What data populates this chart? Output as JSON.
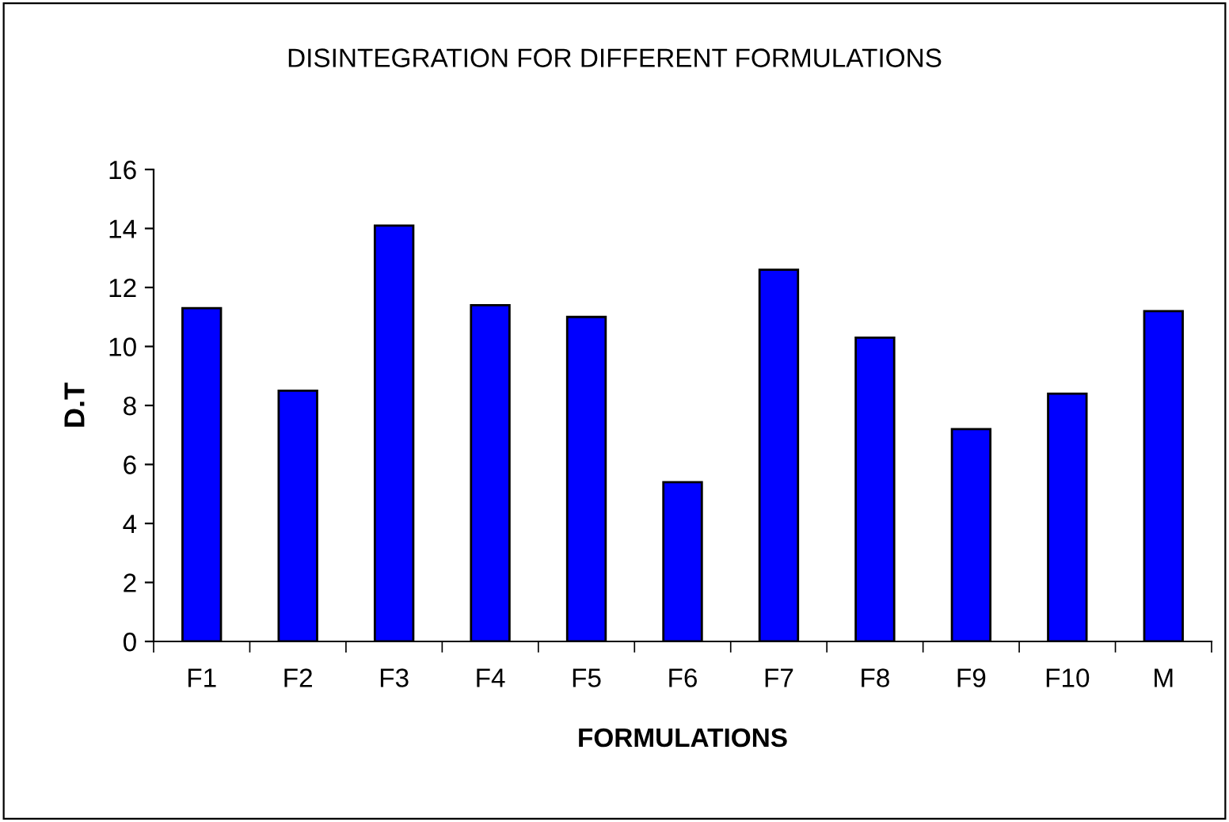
{
  "chart_data": {
    "type": "bar",
    "title": "DISINTEGRATION FOR DIFFERENT FORMULATIONS",
    "xlabel": "FORMULATIONS",
    "ylabel": "D.T",
    "categories": [
      "F1",
      "F2",
      "F3",
      "F4",
      "F5",
      "F6",
      "F7",
      "F8",
      "F9",
      "F10",
      "M"
    ],
    "values": [
      11.3,
      8.5,
      14.1,
      11.4,
      11.0,
      5.4,
      12.6,
      10.3,
      7.2,
      8.4,
      11.2
    ],
    "color": "#0000ff",
    "ylim": [
      0,
      16
    ],
    "yticks": [
      0,
      2,
      4,
      6,
      8,
      10,
      12,
      14,
      16
    ],
    "grid": false,
    "legend": false
  }
}
